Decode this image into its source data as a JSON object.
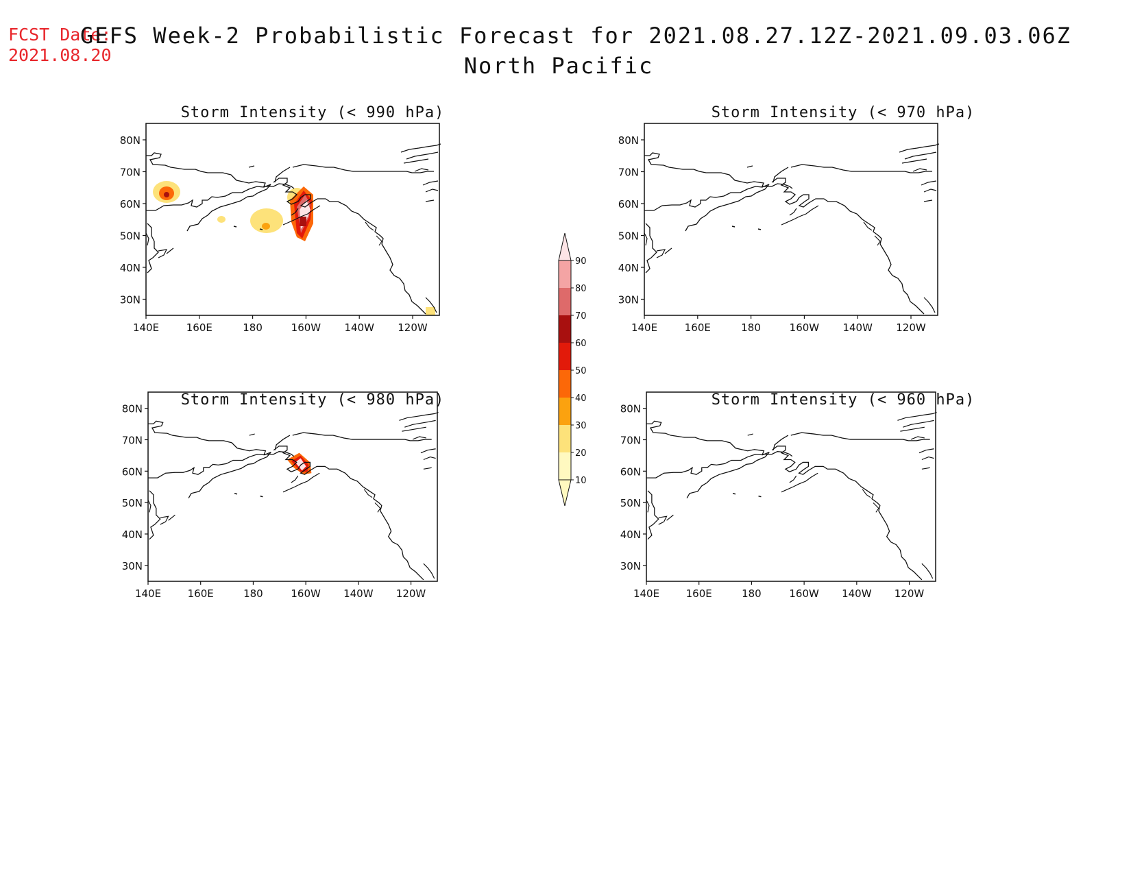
{
  "fcst": {
    "label": "FCST Date:",
    "date": "2021.08.20"
  },
  "title": {
    "line1": "GEFS Week-2 Probabilistic Forecast for 2021.08.27.12Z-2021.09.03.06Z",
    "line2": "North Pacific"
  },
  "panels": [
    {
      "title": "Storm Intensity (< 990 hPa)"
    },
    {
      "title": "Storm Intensity (< 970 hPa)"
    },
    {
      "title": "Storm Intensity (< 980 hPa)"
    },
    {
      "title": "Storm Intensity (< 960 hPa)"
    }
  ],
  "axes": {
    "lat_labels": [
      "80N",
      "70N",
      "60N",
      "50N",
      "40N",
      "30N"
    ],
    "lon_labels": [
      "140E",
      "160E",
      "180",
      "160W",
      "140W",
      "120W"
    ]
  },
  "colorbar": {
    "levels": [
      "10",
      "20",
      "30",
      "40",
      "50",
      "60",
      "70",
      "80",
      "90"
    ],
    "colors": [
      "#fff9c0",
      "#fde27a",
      "#fba20f",
      "#fc6808",
      "#e21a0a",
      "#a8100f",
      "#de6a6a",
      "#f4a4a4",
      "#fde4e6"
    ]
  },
  "chart_data": {
    "type": "map",
    "region": "North Pacific",
    "lat_range": [
      25,
      85
    ],
    "lon_range": [
      140,
      250
    ]
  }
}
